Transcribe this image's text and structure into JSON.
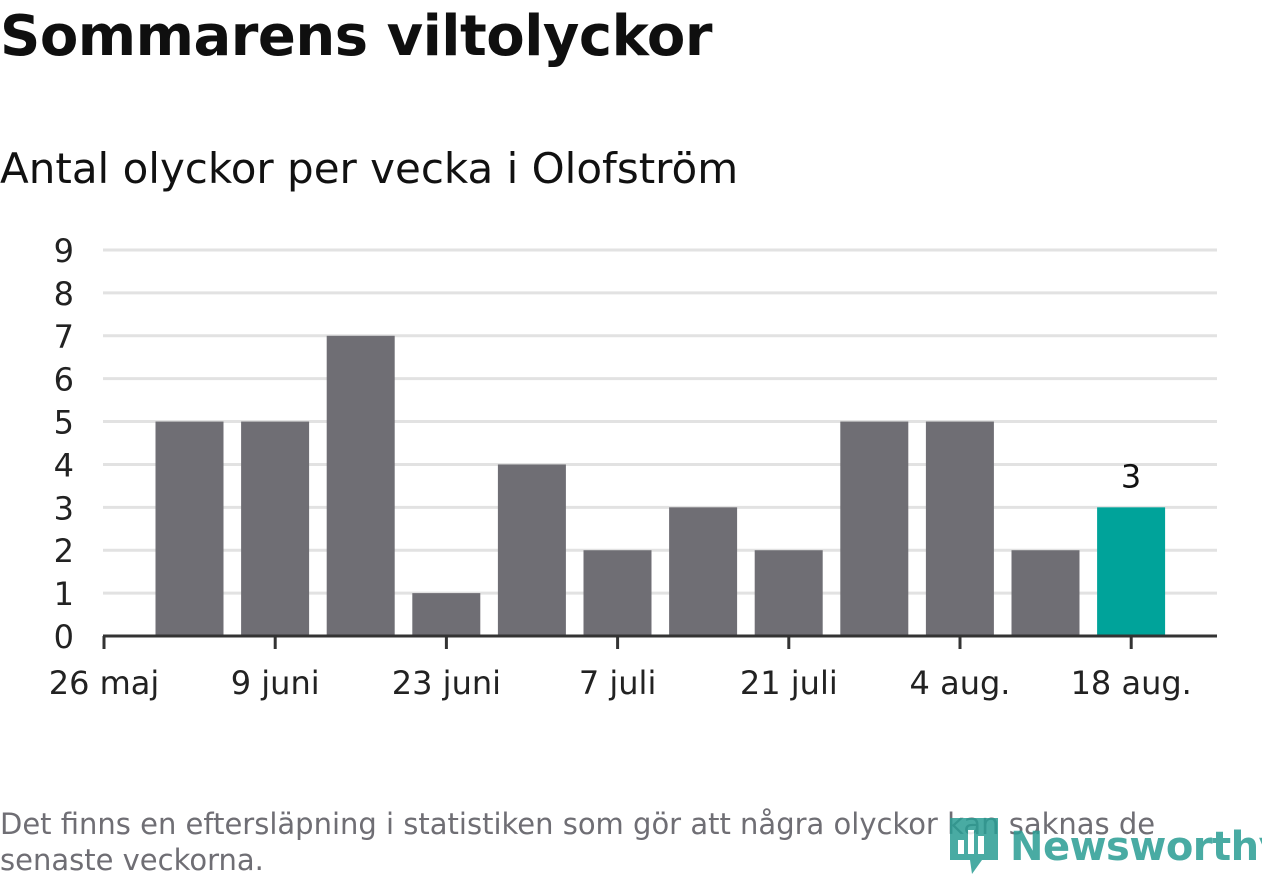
{
  "header": {
    "title": "Sommarens viltolyckor",
    "subtitle": "Antal olyckor per vecka i Olofström"
  },
  "footer": {
    "note": "Det finns en eftersläpning i statistiken som gör att några olyckor kan saknas de senaste veckorna.",
    "logo_text": "Newsworthy",
    "logo_icon": "bar-chart-icon"
  },
  "chart_data": {
    "type": "bar",
    "title": "Sommarens viltolyckor",
    "subtitle": "Antal olyckor per vecka i Olofström",
    "xlabel": "",
    "ylabel": "",
    "x_tick_labels": [
      "26 maj",
      "9 juni",
      "23 juni",
      "7 juli",
      "21 juli",
      "4 aug.",
      "18 aug."
    ],
    "weeks_start": [
      "2019-05-27",
      "2019-06-03",
      "2019-06-10",
      "2019-06-17",
      "2019-06-24",
      "2019-07-01",
      "2019-07-08",
      "2019-07-15",
      "2019-07-22",
      "2019-07-29",
      "2019-08-05",
      "2019-08-12"
    ],
    "values": [
      5,
      5,
      7,
      1,
      4,
      2,
      3,
      2,
      5,
      5,
      2,
      3
    ],
    "highlight_index": 11,
    "highlight_label": "3",
    "ylim": [
      0,
      9
    ],
    "yticks": [
      0,
      1,
      2,
      3,
      4,
      5,
      6,
      7,
      8,
      9
    ],
    "grid": true,
    "colors": {
      "bar": "#6f6e74",
      "highlight": "#00a39a",
      "grid": "#e2e2e2",
      "axis": "#333333"
    }
  }
}
